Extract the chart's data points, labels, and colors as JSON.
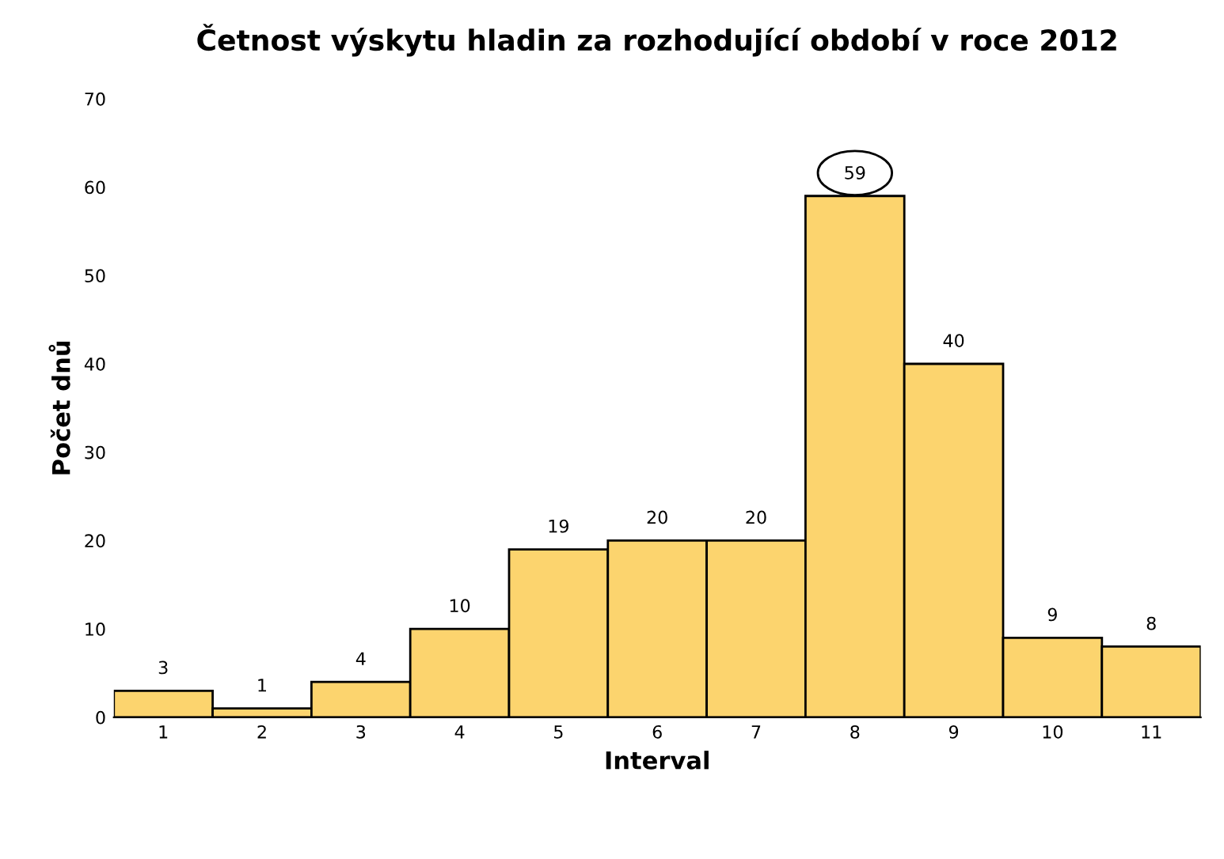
{
  "chart_data": {
    "type": "bar",
    "title": "Četnost výskytu hladin za rozhodující období v roce 2012",
    "xlabel": "Interval",
    "ylabel": "Počet dnů",
    "categories": [
      "1",
      "2",
      "3",
      "4",
      "5",
      "6",
      "7",
      "8",
      "9",
      "10",
      "11"
    ],
    "values": [
      3,
      1,
      4,
      10,
      19,
      20,
      20,
      59,
      40,
      9,
      8
    ],
    "color": "#fcd46e",
    "data_labels": true,
    "ylim": [
      0,
      70
    ],
    "yticks": [
      0,
      10,
      20,
      30,
      40,
      50,
      60,
      70
    ],
    "grid": false,
    "legend": false
  }
}
